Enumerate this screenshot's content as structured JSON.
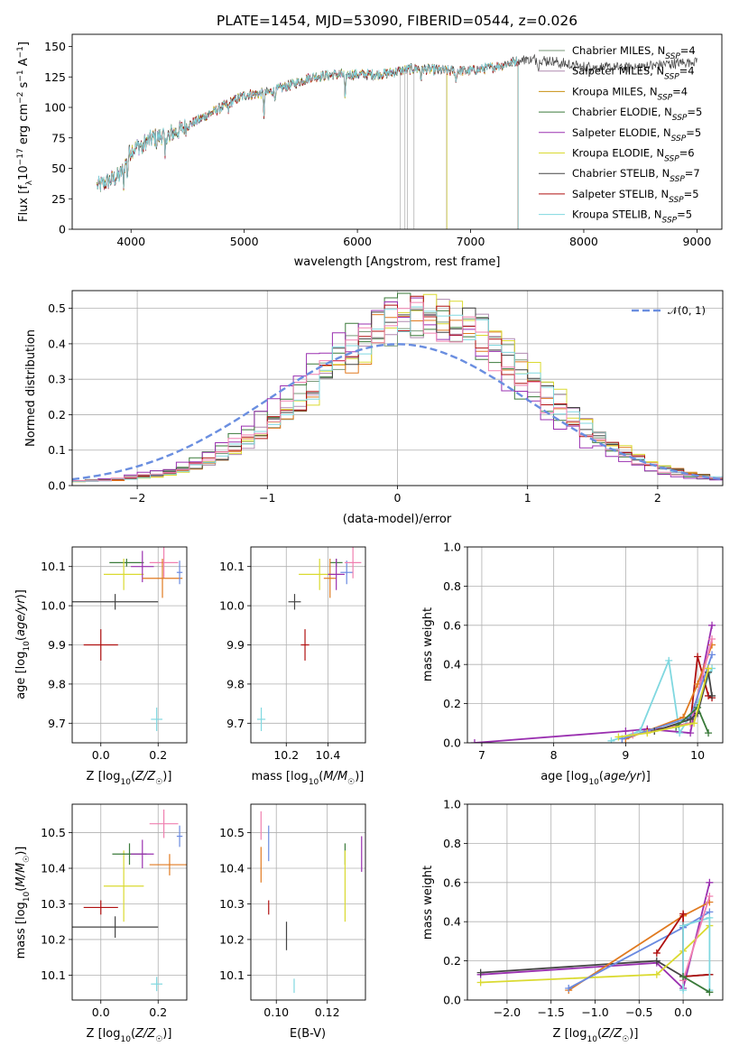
{
  "colors": {
    "Chabrier MILES": "#7a9a7a",
    "Salpeter MILES": "#b08ab0",
    "Kroupa MILES": "#c89010",
    "Chabrier ELODIE": "#3a7a3a",
    "Salpeter ELODIE": "#9a30b0",
    "Kroupa ELODIE": "#dada30",
    "Chabrier STELIB": "#444444",
    "Salpeter STELIB": "#b01010",
    "Kroupa STELIB": "#80d8e0",
    "extra_orange": "#e07a20",
    "extra_pink": "#f080b0",
    "extra_blue": "#6a8ae0",
    "extra_lime": "#c8e840",
    "gauss": "#6a8ee0"
  },
  "chart_data": [
    {
      "id": "spectrum",
      "type": "line",
      "title": "PLATE=1454, MJD=53090, FIBERID=0544, z=0.026",
      "xlabel": "wavelength [Angstrom, rest frame]",
      "ylabel": "Flux [f_λ10⁻¹⁷ erg cm⁻² s⁻¹ A⁻¹]",
      "xlim": [
        3480,
        9220
      ],
      "ylim": [
        0,
        160
      ],
      "xticks": [
        4000,
        5000,
        6000,
        7000,
        8000,
        9000
      ],
      "yticks": [
        0,
        25,
        50,
        75,
        100,
        125,
        150
      ],
      "grid": false,
      "legend_position": "top-right",
      "continuum": [
        [
          3700,
          35
        ],
        [
          3900,
          44
        ],
        [
          4000,
          65
        ],
        [
          4200,
          75
        ],
        [
          4400,
          80
        ],
        [
          4600,
          90
        ],
        [
          4800,
          100
        ],
        [
          5000,
          110
        ],
        [
          5200,
          112
        ],
        [
          5400,
          118
        ],
        [
          5600,
          125
        ],
        [
          5800,
          127
        ],
        [
          6000,
          127
        ],
        [
          6200,
          127
        ],
        [
          6500,
          132
        ],
        [
          6800,
          130
        ],
        [
          7000,
          130
        ],
        [
          7200,
          133
        ],
        [
          7500,
          140
        ],
        [
          7700,
          138
        ],
        [
          8000,
          133
        ],
        [
          8300,
          133
        ],
        [
          8600,
          134
        ],
        [
          8800,
          136
        ],
        [
          9000,
          138
        ]
      ],
      "absorption_lines": [
        [
          3934,
          14
        ],
        [
          3968,
          14
        ],
        [
          4102,
          8
        ],
        [
          4227,
          6
        ],
        [
          4300,
          20
        ],
        [
          4340,
          8
        ],
        [
          4861,
          8
        ],
        [
          5175,
          18
        ],
        [
          5270,
          6
        ],
        [
          5892,
          24
        ],
        [
          6563,
          8
        ],
        [
          6870,
          10
        ],
        [
          7600,
          8
        ]
      ],
      "series": [
        {
          "name": "Chabrier MILES",
          "label": "Chabrier MILES, N_SSP=4",
          "xmax": 7420
        },
        {
          "name": "Salpeter MILES",
          "label": "Salpeter MILES, N_SSP=4",
          "xmax": 7420
        },
        {
          "name": "Kroupa MILES",
          "label": "Kroupa MILES, N_SSP=4",
          "xmax": 7420
        },
        {
          "name": "Chabrier ELODIE",
          "label": "Chabrier ELODIE, N_SSP=5",
          "xmax": 6790
        },
        {
          "name": "Salpeter ELODIE",
          "label": "Salpeter ELODIE, N_SSP=5",
          "xmax": 6790
        },
        {
          "name": "Kroupa ELODIE",
          "label": "Kroupa ELODIE, N_SSP=6",
          "xmax": 6790
        },
        {
          "name": "Chabrier STELIB",
          "label": "Chabrier STELIB, N_SSP=7",
          "xmax": 9000
        },
        {
          "name": "Salpeter STELIB",
          "label": "Salpeter STELIB, N_SSP=5",
          "xmax": 7420
        },
        {
          "name": "Kroupa STELIB",
          "label": "Kroupa STELIB, N_SSP=5",
          "xmax": 7420
        }
      ]
    },
    {
      "id": "residual_hist",
      "type": "line",
      "xlabel": "(data-model)/error",
      "ylabel": "Normed distribution",
      "xlim": [
        -2.5,
        2.5
      ],
      "ylim": [
        0,
        0.55
      ],
      "xticks": [
        -2,
        -1,
        0,
        1,
        2
      ],
      "yticks": [
        0.0,
        0.1,
        0.2,
        0.3,
        0.4,
        0.5
      ],
      "grid": true,
      "legend_position": "top-right",
      "legend": "𝒩(0, 1)",
      "histogram": {
        "bin_width": 0.1,
        "center": 0.15,
        "sigma": 0.82,
        "peak": 0.47,
        "n_series": 9
      }
    },
    {
      "id": "age_vs_Z",
      "type": "scatter",
      "xlabel": "Z [log₁₀(Z/Z☉)]",
      "ylabel": "age  [log₁₀(age/yr)]",
      "xlim": [
        -0.1,
        0.3
      ],
      "ylim": [
        9.65,
        10.15
      ],
      "xticks": [
        0.0,
        0.2
      ],
      "yticks": [
        9.7,
        9.8,
        9.9,
        10.0,
        10.1
      ],
      "grid": true,
      "points": [
        {
          "c": "Chabrier STELIB",
          "x": 0.05,
          "y": 10.01,
          "ex": 0.15,
          "ey": 0.02
        },
        {
          "c": "Salpeter STELIB",
          "x": 0.0,
          "y": 9.9,
          "ex": 0.06,
          "ey": 0.04
        },
        {
          "c": "Chabrier ELODIE",
          "x": 0.09,
          "y": 10.11,
          "ex": 0.06,
          "ey": 0.01
        },
        {
          "c": "Kroupa ELODIE",
          "x": 0.08,
          "y": 10.08,
          "ex": 0.07,
          "ey": 0.04
        },
        {
          "c": "Salpeter ELODIE",
          "x": 0.145,
          "y": 10.1,
          "ex": 0.04,
          "ey": 0.04
        },
        {
          "c": "extra_pink",
          "x": 0.22,
          "y": 10.11,
          "ex": 0.05,
          "ey": 0.04
        },
        {
          "c": "extra_orange",
          "x": 0.215,
          "y": 10.07,
          "ex": 0.07,
          "ey": 0.05
        },
        {
          "c": "extra_blue",
          "x": 0.275,
          "y": 10.085,
          "ex": 0.01,
          "ey": 0.03
        },
        {
          "c": "Kroupa STELIB",
          "x": 0.195,
          "y": 9.71,
          "ex": 0.02,
          "ey": 0.03
        }
      ]
    },
    {
      "id": "age_vs_mass",
      "type": "scatter",
      "xlabel": "mass [log₁₀(M/M☉)]",
      "ylabel": "",
      "xlim": [
        10.03,
        10.58
      ],
      "ylim": [
        9.65,
        10.15
      ],
      "xticks": [
        10.2,
        10.4
      ],
      "yticks": [
        9.7,
        9.8,
        9.9,
        10.0,
        10.1
      ],
      "grid": true,
      "points": [
        {
          "c": "Chabrier STELIB",
          "x": 10.24,
          "y": 10.01,
          "ex": 0.03,
          "ey": 0.02
        },
        {
          "c": "Salpeter STELIB",
          "x": 10.29,
          "y": 9.9,
          "ex": 0.02,
          "ey": 0.04
        },
        {
          "c": "Kroupa ELODIE",
          "x": 10.36,
          "y": 10.08,
          "ex": 0.1,
          "ey": 0.04
        },
        {
          "c": "Chabrier ELODIE",
          "x": 10.44,
          "y": 10.11,
          "ex": 0.03,
          "ey": 0.01
        },
        {
          "c": "extra_orange",
          "x": 10.41,
          "y": 10.07,
          "ex": 0.03,
          "ey": 0.05
        },
        {
          "c": "Salpeter ELODIE",
          "x": 10.44,
          "y": 10.08,
          "ex": 0.04,
          "ey": 0.04
        },
        {
          "c": "extra_blue",
          "x": 10.49,
          "y": 10.085,
          "ex": 0.03,
          "ey": 0.03
        },
        {
          "c": "extra_pink",
          "x": 10.52,
          "y": 10.11,
          "ex": 0.04,
          "ey": 0.04
        },
        {
          "c": "Kroupa STELIB",
          "x": 10.08,
          "y": 9.71,
          "ex": 0.02,
          "ey": 0.03
        }
      ]
    },
    {
      "id": "massweight_vs_age",
      "type": "line",
      "xlabel": "age  [log₁₀(age/yr)]",
      "ylabel": "mass weight",
      "xlim": [
        6.8,
        10.35
      ],
      "ylim": [
        0,
        1.0
      ],
      "xticks": [
        7,
        8,
        9,
        10
      ],
      "yticks": [
        0.0,
        0.2,
        0.4,
        0.6,
        0.8,
        1.0
      ],
      "grid": true,
      "series": [
        {
          "c": "Salpeter ELODIE",
          "pts": [
            [
              6.9,
              0.0
            ],
            [
              9.0,
              0.06
            ],
            [
              9.3,
              0.07
            ],
            [
              9.9,
              0.05
            ],
            [
              10.2,
              0.6
            ]
          ]
        },
        {
          "c": "Kroupa STELIB",
          "pts": [
            [
              8.8,
              0.01
            ],
            [
              9.2,
              0.06
            ],
            [
              9.6,
              0.42
            ],
            [
              9.75,
              0.05
            ],
            [
              10.0,
              0.2
            ],
            [
              10.2,
              0.38
            ]
          ]
        },
        {
          "c": "Salpeter STELIB",
          "pts": [
            [
              9.3,
              0.06
            ],
            [
              9.9,
              0.1
            ],
            [
              10.0,
              0.44
            ],
            [
              10.15,
              0.24
            ],
            [
              10.2,
              0.23
            ]
          ]
        },
        {
          "c": "extra_orange",
          "pts": [
            [
              9.0,
              0.02
            ],
            [
              9.8,
              0.13
            ],
            [
              10.0,
              0.3
            ],
            [
              10.2,
              0.5
            ]
          ]
        },
        {
          "c": "extra_pink",
          "pts": [
            [
              9.1,
              0.04
            ],
            [
              9.9,
              0.1
            ],
            [
              10.2,
              0.53
            ]
          ]
        },
        {
          "c": "extra_blue",
          "pts": [
            [
              8.95,
              0.02
            ],
            [
              9.9,
              0.13
            ],
            [
              10.2,
              0.45
            ]
          ]
        },
        {
          "c": "Chabrier STELIB",
          "pts": [
            [
              9.4,
              0.06
            ],
            [
              9.9,
              0.12
            ],
            [
              10.0,
              0.15
            ],
            [
              10.15,
              0.36
            ],
            [
              10.2,
              0.24
            ]
          ]
        },
        {
          "c": "Chabrier ELODIE",
          "pts": [
            [
              9.7,
              0.08
            ],
            [
              10.0,
              0.18
            ],
            [
              10.15,
              0.05
            ]
          ]
        },
        {
          "c": "Kroupa ELODIE",
          "pts": [
            [
              8.9,
              0.03
            ],
            [
              9.3,
              0.05
            ],
            [
              9.95,
              0.1
            ],
            [
              10.15,
              0.38
            ]
          ]
        }
      ]
    },
    {
      "id": "mass_vs_Z",
      "type": "scatter",
      "xlabel": "Z [log₁₀(Z/Z☉)]",
      "ylabel": "mass [log₁₀(M/M☉)]",
      "xlim": [
        -0.1,
        0.3
      ],
      "ylim": [
        10.03,
        10.58
      ],
      "xticks": [
        0.0,
        0.2
      ],
      "yticks": [
        10.1,
        10.2,
        10.3,
        10.4,
        10.5
      ],
      "grid": true,
      "points": [
        {
          "c": "Chabrier STELIB",
          "x": 0.05,
          "y": 10.235,
          "ex": 0.15,
          "ey": 0.03
        },
        {
          "c": "Salpeter STELIB",
          "x": 0.0,
          "y": 10.29,
          "ex": 0.06,
          "ey": 0.02
        },
        {
          "c": "Kroupa ELODIE",
          "x": 0.08,
          "y": 10.35,
          "ex": 0.07,
          "ey": 0.1
        },
        {
          "c": "Chabrier ELODIE",
          "x": 0.1,
          "y": 10.44,
          "ex": 0.06,
          "ey": 0.03
        },
        {
          "c": "Salpeter ELODIE",
          "x": 0.145,
          "y": 10.44,
          "ex": 0.04,
          "ey": 0.04
        },
        {
          "c": "extra_orange",
          "x": 0.24,
          "y": 10.41,
          "ex": 0.07,
          "ey": 0.03
        },
        {
          "c": "extra_pink",
          "x": 0.22,
          "y": 10.525,
          "ex": 0.05,
          "ey": 0.04
        },
        {
          "c": "extra_blue",
          "x": 0.275,
          "y": 10.49,
          "ex": 0.01,
          "ey": 0.03
        },
        {
          "c": "Kroupa STELIB",
          "x": 0.195,
          "y": 10.075,
          "ex": 0.02,
          "ey": 0.02
        }
      ]
    },
    {
      "id": "mass_vs_ebv",
      "type": "scatter",
      "xlabel": "E(B-V)",
      "ylabel": "",
      "xlim": [
        0.09,
        0.135
      ],
      "ylim": [
        10.03,
        10.58
      ],
      "xticks": [
        0.1,
        0.12
      ],
      "yticks": [
        10.1,
        10.2,
        10.3,
        10.4,
        10.5
      ],
      "grid": true,
      "points": [
        {
          "c": "extra_pink",
          "x": 0.094,
          "y": 10.52,
          "ex": 0,
          "ey": 0.04
        },
        {
          "c": "extra_orange",
          "x": 0.094,
          "y": 10.41,
          "ex": 0,
          "ey": 0.05
        },
        {
          "c": "extra_blue",
          "x": 0.097,
          "y": 10.47,
          "ex": 0,
          "ey": 0.05
        },
        {
          "c": "Salpeter STELIB",
          "x": 0.097,
          "y": 10.29,
          "ex": 0,
          "ey": 0.02
        },
        {
          "c": "Chabrier STELIB",
          "x": 0.104,
          "y": 10.21,
          "ex": 0,
          "ey": 0.04
        },
        {
          "c": "Kroupa STELIB",
          "x": 0.107,
          "y": 10.07,
          "ex": 0,
          "ey": 0.02
        },
        {
          "c": "Chabrier ELODIE",
          "x": 0.127,
          "y": 10.44,
          "ex": 0,
          "ey": 0.03
        },
        {
          "c": "Kroupa ELODIE",
          "x": 0.127,
          "y": 10.35,
          "ex": 0,
          "ey": 0.1
        },
        {
          "c": "Salpeter ELODIE",
          "x": 0.1335,
          "y": 10.44,
          "ex": 0,
          "ey": 0.05
        }
      ]
    },
    {
      "id": "massweight_vs_Z",
      "type": "line",
      "xlabel": "Z [log₁₀(Z/Z☉)]",
      "ylabel": "mass weight",
      "xlim": [
        -2.45,
        0.45
      ],
      "ylim": [
        0,
        1.0
      ],
      "xticks": [
        -2.0,
        -1.5,
        -1.0,
        -0.5,
        0.0
      ],
      "yticks": [
        0.0,
        0.2,
        0.4,
        0.6,
        0.8,
        1.0
      ],
      "grid": true,
      "series": [
        {
          "c": "Salpeter ELODIE",
          "pts": [
            [
              -2.3,
              0.13
            ],
            [
              -0.3,
              0.19
            ],
            [
              0.0,
              0.06
            ],
            [
              0.3,
              0.6
            ]
          ]
        },
        {
          "c": "Chabrier STELIB",
          "pts": [
            [
              -2.3,
              0.14
            ],
            [
              -0.3,
              0.2
            ],
            [
              0.0,
              0.12
            ],
            [
              0.3,
              0.13
            ]
          ]
        },
        {
          "c": "Kroupa ELODIE",
          "pts": [
            [
              -2.3,
              0.09
            ],
            [
              -0.3,
              0.13
            ],
            [
              0.0,
              0.25
            ],
            [
              0.3,
              0.38
            ]
          ]
        },
        {
          "c": "extra_orange",
          "pts": [
            [
              -1.3,
              0.05
            ],
            [
              0.0,
              0.43
            ],
            [
              0.3,
              0.5
            ]
          ]
        },
        {
          "c": "extra_blue",
          "pts": [
            [
              -1.3,
              0.06
            ],
            [
              0.0,
              0.37
            ],
            [
              0.3,
              0.45
            ]
          ]
        },
        {
          "c": "Salpeter STELIB",
          "pts": [
            [
              -0.3,
              0.24
            ],
            [
              0.0,
              0.44
            ],
            [
              0.0,
              0.12
            ],
            [
              0.3,
              0.13
            ]
          ]
        },
        {
          "c": "Kroupa STELIB",
          "pts": [
            [
              0.0,
              0.05
            ],
            [
              0.0,
              0.38
            ],
            [
              0.3,
              0.42
            ],
            [
              0.3,
              0.05
            ]
          ]
        },
        {
          "c": "extra_pink",
          "pts": [
            [
              0.0,
              0.1
            ],
            [
              0.3,
              0.53
            ]
          ]
        },
        {
          "c": "Chabrier ELODIE",
          "pts": [
            [
              0.0,
              0.12
            ],
            [
              0.3,
              0.04
            ]
          ]
        }
      ]
    }
  ]
}
